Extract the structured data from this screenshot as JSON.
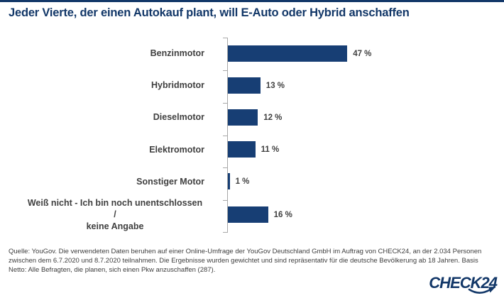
{
  "page": {
    "source_text": "Quelle: YouGov. Die verwendeten Daten beruhen auf einer Online-Umfrage der YouGov Deutschland GmbH im Auftrag von CHECK24, an der 2.034 Personen zwischen dem 6.7.2020 und 8.7.2020 teilnahmen. Die Ergebnisse wurden gewichtet und sind repräsentativ für die deutsche Bevölkerung ab 18 Jahren. Basis Netto: Alle Befragten, die planen, sich einen Pkw anzuschaffen (287).",
    "logo_text": "CHECK24"
  },
  "colors": {
    "navy": "#123768",
    "bar_blue": "#173e74",
    "label_gray": "#3f3f3f",
    "axis_gray": "#a8a8a8"
  },
  "chart_data": {
    "type": "bar",
    "orientation": "horizontal",
    "title": "Jeder Vierte, der einen Autokauf plant, will E-Auto oder Hybrid anschaffen",
    "categories": [
      "Benzinmotor",
      "Hybridmotor",
      "Dieselmotor",
      "Elektromotor",
      "Sonstiger Motor",
      "Weiß nicht - Ich bin noch unentschlossen /\nkeine Angabe"
    ],
    "values": [
      47,
      13,
      12,
      11,
      1,
      16
    ],
    "value_labels": [
      "47 %",
      "13 %",
      "12 %",
      "11 %",
      "1 %",
      "16 %"
    ],
    "unit": "%",
    "xlabel": "",
    "ylabel": "",
    "xlim": [
      0,
      50
    ],
    "grid": false,
    "legend": false,
    "bar_color": "#173e74"
  }
}
